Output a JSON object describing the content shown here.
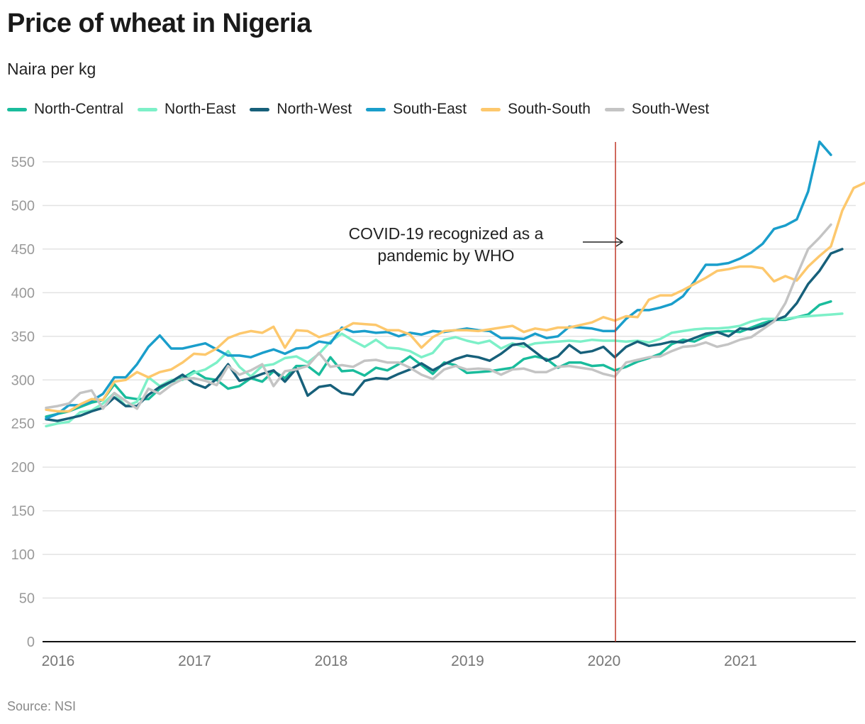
{
  "header": {
    "title": "Price of wheat in Nigeria",
    "subtitle": "Naira per kg"
  },
  "footer": {
    "source": "Source: NSI"
  },
  "chart_data": {
    "type": "line",
    "title": "Price of wheat in Nigeria",
    "subtitle": "Naira per kg",
    "xlabel": "",
    "ylabel": "Naira per kg",
    "x_start": "2016-01",
    "x_frequency": "monthly",
    "x_ticks": [
      "2016",
      "2017",
      "2018",
      "2019",
      "2020",
      "2021"
    ],
    "y_ticks": [
      0,
      50,
      100,
      150,
      200,
      250,
      300,
      350,
      400,
      450,
      500,
      550
    ],
    "ylim": [
      0,
      575
    ],
    "grid": true,
    "legend_position": "top-left",
    "annotation": {
      "text_line1": "COVID-19 recognized as a",
      "text_line2": "pandemic by WHO",
      "x": "2020-03",
      "color": "#c0392b"
    },
    "series": [
      {
        "name": "North-Central",
        "color": "#1abc9c",
        "values": [
          258,
          261,
          264,
          269,
          274,
          277,
          295,
          280,
          278,
          278,
          290,
          298,
          302,
          310,
          302,
          300,
          290,
          293,
          302,
          298,
          310,
          302,
          316,
          316,
          306,
          326,
          310,
          311,
          305,
          314,
          311,
          318,
          327,
          317,
          307,
          320,
          317,
          308,
          309,
          310,
          312,
          314,
          324,
          327,
          324,
          314,
          320,
          320,
          316,
          317,
          311,
          315,
          321,
          325,
          330,
          341,
          346,
          344,
          350,
          355,
          356,
          355,
          360,
          365,
          369,
          369,
          372,
          375,
          386,
          390
        ]
      },
      {
        "name": "North-East",
        "color": "#7df0c8",
        "values": [
          247,
          250,
          252,
          263,
          265,
          273,
          285,
          270,
          275,
          303,
          293,
          300,
          300,
          308,
          312,
          320,
          333,
          315,
          304,
          316,
          318,
          325,
          327,
          320,
          330,
          344,
          353,
          345,
          338,
          346,
          337,
          336,
          333,
          326,
          331,
          346,
          349,
          345,
          342,
          345,
          336,
          342,
          338,
          342,
          343,
          344,
          345,
          344,
          346,
          345,
          345,
          344,
          345,
          343,
          347,
          354,
          356,
          358,
          359,
          359,
          360,
          362,
          367,
          370,
          370,
          370,
          372,
          373,
          374,
          375,
          376
        ]
      },
      {
        "name": "North-West",
        "color": "#17607a",
        "values": [
          255,
          253,
          256,
          259,
          264,
          268,
          280,
          270,
          270,
          283,
          292,
          298,
          306,
          296,
          291,
          301,
          318,
          299,
          302,
          307,
          311,
          298,
          313,
          282,
          292,
          294,
          285,
          283,
          299,
          302,
          301,
          307,
          312,
          319,
          311,
          318,
          324,
          328,
          326,
          322,
          330,
          340,
          342,
          332,
          322,
          327,
          340,
          331,
          333,
          338,
          326,
          338,
          344,
          339,
          341,
          344,
          343,
          348,
          353,
          355,
          350,
          359,
          358,
          362,
          368,
          373,
          388,
          410,
          425,
          445,
          450
        ]
      },
      {
        "name": "South-East",
        "color": "#1a9ecb",
        "values": [
          256,
          261,
          271,
          271,
          276,
          284,
          303,
          303,
          318,
          338,
          351,
          336,
          336,
          339,
          342,
          335,
          328,
          328,
          326,
          331,
          335,
          330,
          336,
          337,
          344,
          342,
          360,
          355,
          356,
          354,
          355,
          350,
          354,
          352,
          356,
          355,
          357,
          359,
          357,
          356,
          348,
          348,
          347,
          353,
          348,
          350,
          361,
          360,
          359,
          356,
          356,
          370,
          380,
          380,
          383,
          387,
          396,
          413,
          432,
          432,
          434,
          439,
          446,
          456,
          473,
          477,
          484,
          516,
          573,
          558
        ]
      },
      {
        "name": "South-South",
        "color": "#fdc86d",
        "values": [
          266,
          264,
          264,
          272,
          278,
          277,
          298,
          300,
          309,
          303,
          309,
          312,
          320,
          330,
          329,
          336,
          348,
          353,
          356,
          354,
          361,
          337,
          357,
          356,
          349,
          353,
          358,
          365,
          364,
          363,
          357,
          357,
          352,
          337,
          349,
          356,
          357,
          357,
          356,
          358,
          360,
          362,
          355,
          359,
          357,
          360,
          360,
          363,
          366,
          372,
          368,
          373,
          372,
          392,
          397,
          397,
          403,
          410,
          417,
          425,
          427,
          430,
          430,
          428,
          413,
          419,
          414,
          430,
          442,
          453,
          494,
          520,
          526
        ]
      },
      {
        "name": "South-West",
        "color": "#c4c4c4",
        "values": [
          268,
          270,
          273,
          285,
          288,
          267,
          285,
          276,
          267,
          290,
          284,
          294,
          301,
          302,
          299,
          294,
          316,
          306,
          311,
          318,
          293,
          310,
          312,
          316,
          331,
          315,
          317,
          315,
          322,
          323,
          320,
          320,
          314,
          306,
          301,
          312,
          316,
          312,
          313,
          312,
          306,
          312,
          313,
          309,
          309,
          315,
          316,
          314,
          312,
          307,
          304,
          320,
          323,
          326,
          327,
          333,
          338,
          339,
          343,
          338,
          341,
          346,
          349,
          358,
          367,
          388,
          420,
          450,
          463,
          478
        ]
      }
    ]
  }
}
